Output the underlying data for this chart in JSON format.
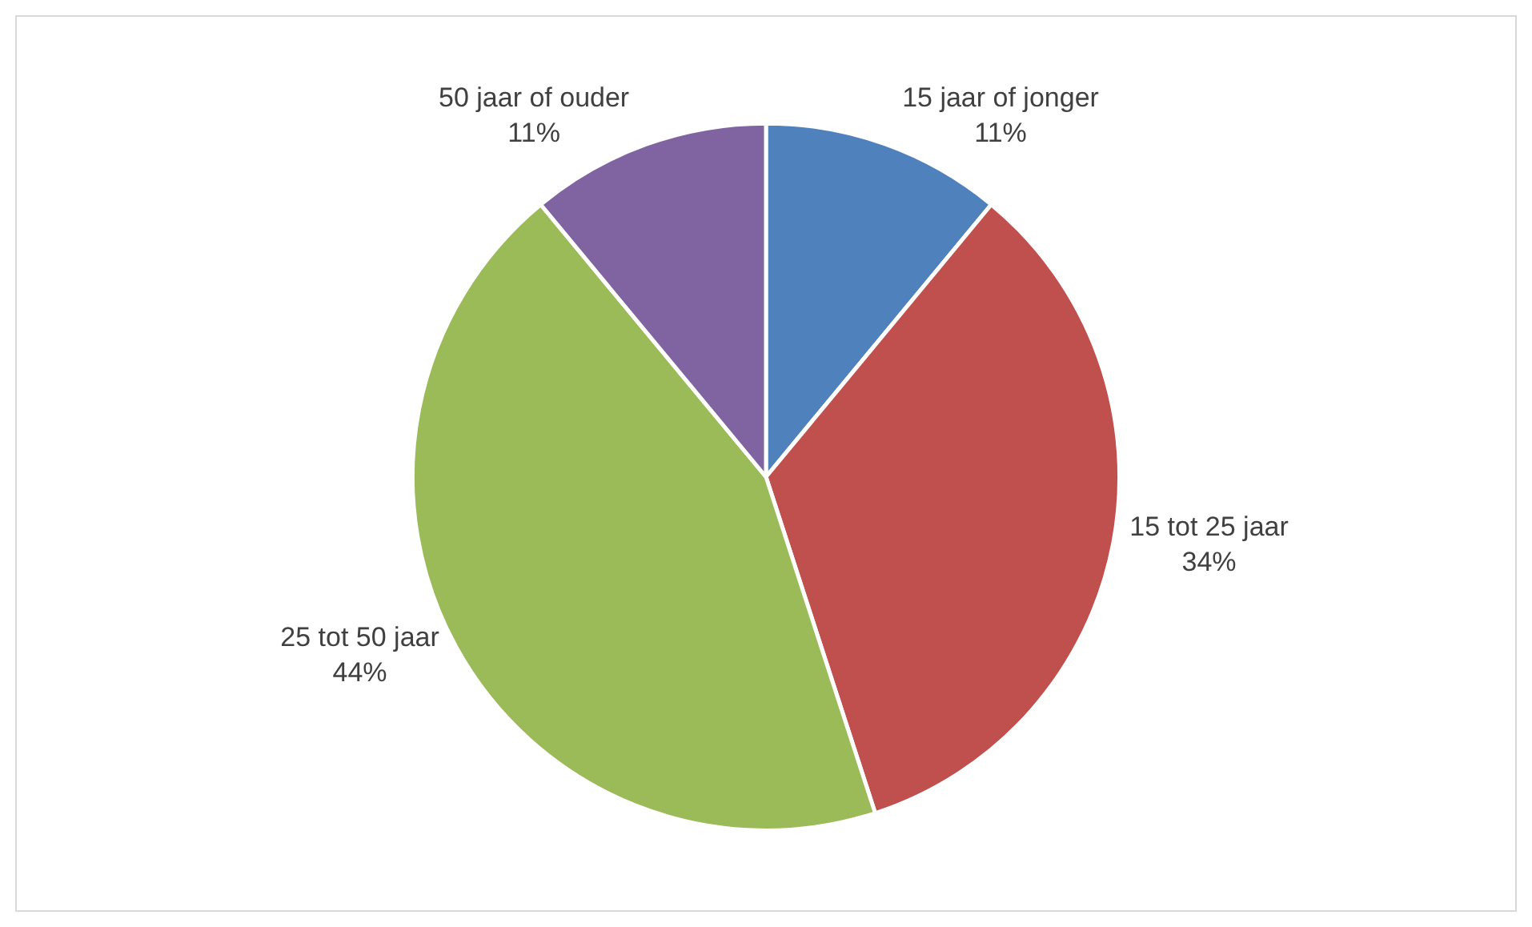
{
  "chart_data": {
    "type": "pie",
    "categories": [
      "15 jaar of jonger",
      "15 tot 25 jaar",
      "25 tot 50 jaar",
      "50 jaar of ouder"
    ],
    "values": [
      11,
      34,
      44,
      11
    ],
    "value_labels": [
      "11%",
      "34%",
      "44%",
      "11%"
    ],
    "colors": [
      "#4f81bd",
      "#c0504d",
      "#9bbb59",
      "#8064a2"
    ],
    "legend": false
  }
}
